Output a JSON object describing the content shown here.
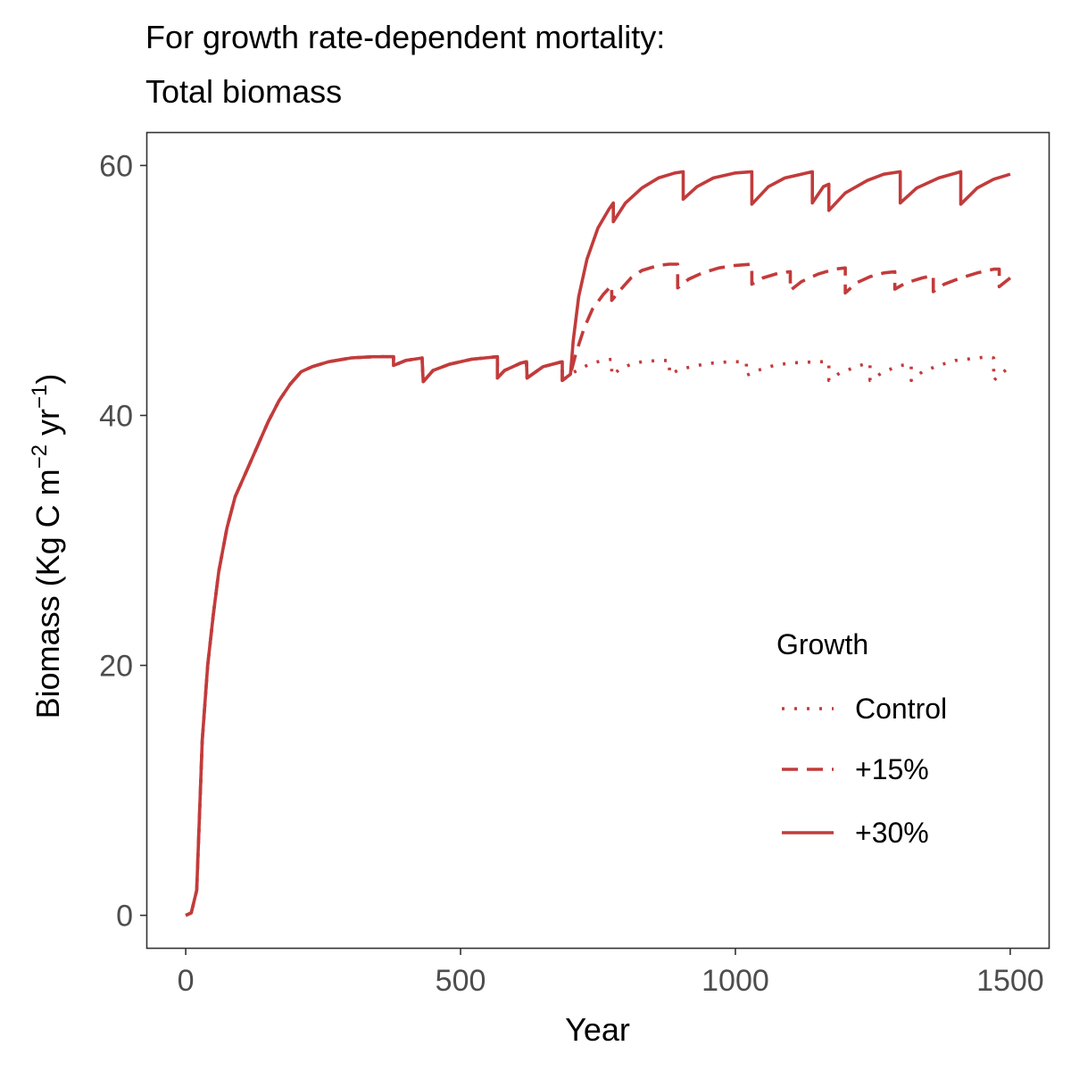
{
  "chart_data": {
    "type": "line",
    "title": "For growth rate-dependent mortality:",
    "subtitle": "Total biomass",
    "xlabel": "Year",
    "ylabel_text": "Biomass (Kg C m",
    "ylabel_sup1": "−2",
    "ylabel_mid": " yr",
    "ylabel_sup2": "−1",
    "ylabel_close": ")",
    "xlim": [
      -70,
      1570
    ],
    "ylim": [
      -2.6,
      62.6
    ],
    "xticks": [
      0,
      500,
      1000,
      1500
    ],
    "yticks": [
      0,
      20,
      40,
      60
    ],
    "grid": false,
    "color": "#C23B3B",
    "legend": {
      "title": "Growth",
      "placement": "bottom-right",
      "entries": [
        "Control",
        "+15%",
        "+30%"
      ]
    },
    "series": [
      {
        "name": "Control",
        "linestyle": "dotted",
        "points": [
          [
            0,
            0
          ],
          [
            10,
            0.2
          ],
          [
            20,
            2
          ],
          [
            25,
            8
          ],
          [
            30,
            14
          ],
          [
            40,
            20
          ],
          [
            50,
            24
          ],
          [
            60,
            27.5
          ],
          [
            75,
            31
          ],
          [
            90,
            33.5
          ],
          [
            110,
            35.5
          ],
          [
            130,
            37.5
          ],
          [
            150,
            39.5
          ],
          [
            170,
            41.2
          ],
          [
            190,
            42.5
          ],
          [
            210,
            43.5
          ],
          [
            230,
            43.9
          ],
          [
            260,
            44.3
          ],
          [
            300,
            44.6
          ],
          [
            340,
            44.7
          ],
          [
            378,
            44.7
          ],
          [
            378,
            44.0
          ],
          [
            400,
            44.4
          ],
          [
            430,
            44.6
          ],
          [
            432,
            42.7
          ],
          [
            450,
            43.6
          ],
          [
            480,
            44.1
          ],
          [
            520,
            44.5
          ],
          [
            567,
            44.7
          ],
          [
            567,
            43.0
          ],
          [
            580,
            43.6
          ],
          [
            610,
            44.2
          ],
          [
            620,
            44.3
          ],
          [
            621,
            43.0
          ],
          [
            650,
            43.9
          ],
          [
            685,
            44.3
          ],
          [
            685,
            42.8
          ],
          [
            700,
            43.3
          ],
          [
            720,
            43.8
          ],
          [
            740,
            44.2
          ],
          [
            760,
            44.4
          ],
          [
            775,
            44.5
          ],
          [
            775,
            43.2
          ],
          [
            790,
            43.7
          ],
          [
            810,
            44.1
          ],
          [
            830,
            44.3
          ],
          [
            860,
            44.4
          ],
          [
            880,
            44.4
          ],
          [
            880,
            43.3
          ],
          [
            900,
            43.7
          ],
          [
            930,
            44.0
          ],
          [
            960,
            44.2
          ],
          [
            990,
            44.3
          ],
          [
            1020,
            44.3
          ],
          [
            1020,
            43.2
          ],
          [
            1040,
            43.6
          ],
          [
            1070,
            44.0
          ],
          [
            1100,
            44.2
          ],
          [
            1150,
            44.3
          ],
          [
            1170,
            44.3
          ],
          [
            1170,
            42.8
          ],
          [
            1190,
            43.4
          ],
          [
            1220,
            43.9
          ],
          [
            1240,
            44.2
          ],
          [
            1245,
            44.2
          ],
          [
            1245,
            42.8
          ],
          [
            1270,
            43.5
          ],
          [
            1300,
            44.0
          ],
          [
            1320,
            44.1
          ],
          [
            1320,
            42.8
          ],
          [
            1340,
            43.5
          ],
          [
            1370,
            44.0
          ],
          [
            1400,
            44.4
          ],
          [
            1440,
            44.6
          ],
          [
            1460,
            44.7
          ],
          [
            1470,
            44.6
          ],
          [
            1470,
            42.8
          ],
          [
            1485,
            43.4
          ],
          [
            1500,
            43.9
          ]
        ]
      },
      {
        "name": "+15%",
        "linestyle": "dashed",
        "points": [
          [
            0,
            0
          ],
          [
            10,
            0.2
          ],
          [
            20,
            2
          ],
          [
            25,
            8
          ],
          [
            30,
            14
          ],
          [
            40,
            20
          ],
          [
            50,
            24
          ],
          [
            60,
            27.5
          ],
          [
            75,
            31
          ],
          [
            90,
            33.5
          ],
          [
            110,
            35.5
          ],
          [
            130,
            37.5
          ],
          [
            150,
            39.5
          ],
          [
            170,
            41.2
          ],
          [
            190,
            42.5
          ],
          [
            210,
            43.5
          ],
          [
            230,
            43.9
          ],
          [
            260,
            44.3
          ],
          [
            300,
            44.6
          ],
          [
            340,
            44.7
          ],
          [
            378,
            44.7
          ],
          [
            378,
            44.0
          ],
          [
            400,
            44.4
          ],
          [
            430,
            44.6
          ],
          [
            432,
            42.7
          ],
          [
            450,
            43.6
          ],
          [
            480,
            44.1
          ],
          [
            520,
            44.5
          ],
          [
            567,
            44.7
          ],
          [
            567,
            43.0
          ],
          [
            580,
            43.6
          ],
          [
            610,
            44.2
          ],
          [
            620,
            44.3
          ],
          [
            621,
            43.0
          ],
          [
            650,
            43.9
          ],
          [
            685,
            44.3
          ],
          [
            685,
            42.8
          ],
          [
            700,
            43.3
          ],
          [
            710,
            45.0
          ],
          [
            725,
            47.0
          ],
          [
            740,
            48.5
          ],
          [
            760,
            49.7
          ],
          [
            775,
            50.4
          ],
          [
            775,
            49.2
          ],
          [
            790,
            50.0
          ],
          [
            810,
            51.0
          ],
          [
            830,
            51.6
          ],
          [
            860,
            52.0
          ],
          [
            880,
            52.1
          ],
          [
            895,
            52.1
          ],
          [
            895,
            50.2
          ],
          [
            915,
            50.9
          ],
          [
            940,
            51.4
          ],
          [
            970,
            51.8
          ],
          [
            1000,
            52.0
          ],
          [
            1030,
            52.1
          ],
          [
            1030,
            50.5
          ],
          [
            1050,
            51.0
          ],
          [
            1080,
            51.4
          ],
          [
            1100,
            51.5
          ],
          [
            1100,
            50.0
          ],
          [
            1120,
            50.7
          ],
          [
            1150,
            51.3
          ],
          [
            1180,
            51.7
          ],
          [
            1200,
            51.8
          ],
          [
            1200,
            49.8
          ],
          [
            1220,
            50.6
          ],
          [
            1245,
            51.1
          ],
          [
            1270,
            51.4
          ],
          [
            1290,
            51.5
          ],
          [
            1290,
            50.1
          ],
          [
            1310,
            50.6
          ],
          [
            1340,
            51.0
          ],
          [
            1360,
            51.2
          ],
          [
            1360,
            49.9
          ],
          [
            1380,
            50.5
          ],
          [
            1410,
            51.0
          ],
          [
            1440,
            51.4
          ],
          [
            1470,
            51.7
          ],
          [
            1480,
            51.7
          ],
          [
            1480,
            50.3
          ],
          [
            1500,
            51.0
          ]
        ]
      },
      {
        "name": "+30%",
        "linestyle": "solid",
        "points": [
          [
            0,
            0
          ],
          [
            10,
            0.2
          ],
          [
            20,
            2
          ],
          [
            25,
            8
          ],
          [
            30,
            14
          ],
          [
            40,
            20
          ],
          [
            50,
            24
          ],
          [
            60,
            27.5
          ],
          [
            75,
            31
          ],
          [
            90,
            33.5
          ],
          [
            110,
            35.5
          ],
          [
            130,
            37.5
          ],
          [
            150,
            39.5
          ],
          [
            170,
            41.2
          ],
          [
            190,
            42.5
          ],
          [
            210,
            43.5
          ],
          [
            230,
            43.9
          ],
          [
            260,
            44.3
          ],
          [
            300,
            44.6
          ],
          [
            340,
            44.7
          ],
          [
            378,
            44.7
          ],
          [
            378,
            44.0
          ],
          [
            400,
            44.4
          ],
          [
            430,
            44.6
          ],
          [
            432,
            42.7
          ],
          [
            450,
            43.6
          ],
          [
            480,
            44.1
          ],
          [
            520,
            44.5
          ],
          [
            567,
            44.7
          ],
          [
            567,
            43.0
          ],
          [
            580,
            43.6
          ],
          [
            610,
            44.2
          ],
          [
            620,
            44.3
          ],
          [
            621,
            43.0
          ],
          [
            650,
            43.9
          ],
          [
            685,
            44.3
          ],
          [
            685,
            42.8
          ],
          [
            700,
            43.3
          ],
          [
            705,
            46.0
          ],
          [
            715,
            49.5
          ],
          [
            730,
            52.5
          ],
          [
            750,
            55.0
          ],
          [
            770,
            56.5
          ],
          [
            778,
            57.0
          ],
          [
            778,
            55.5
          ],
          [
            800,
            57.0
          ],
          [
            830,
            58.2
          ],
          [
            860,
            59.0
          ],
          [
            890,
            59.4
          ],
          [
            905,
            59.5
          ],
          [
            905,
            57.3
          ],
          [
            930,
            58.3
          ],
          [
            960,
            59.0
          ],
          [
            1000,
            59.4
          ],
          [
            1030,
            59.5
          ],
          [
            1030,
            56.9
          ],
          [
            1060,
            58.3
          ],
          [
            1090,
            59.0
          ],
          [
            1140,
            59.5
          ],
          [
            1140,
            57.0
          ],
          [
            1160,
            58.3
          ],
          [
            1170,
            58.5
          ],
          [
            1170,
            56.4
          ],
          [
            1200,
            57.8
          ],
          [
            1240,
            58.8
          ],
          [
            1270,
            59.3
          ],
          [
            1300,
            59.5
          ],
          [
            1300,
            57.0
          ],
          [
            1330,
            58.2
          ],
          [
            1370,
            59.0
          ],
          [
            1410,
            59.5
          ],
          [
            1410,
            56.9
          ],
          [
            1440,
            58.2
          ],
          [
            1470,
            58.9
          ],
          [
            1500,
            59.3
          ]
        ]
      }
    ]
  }
}
